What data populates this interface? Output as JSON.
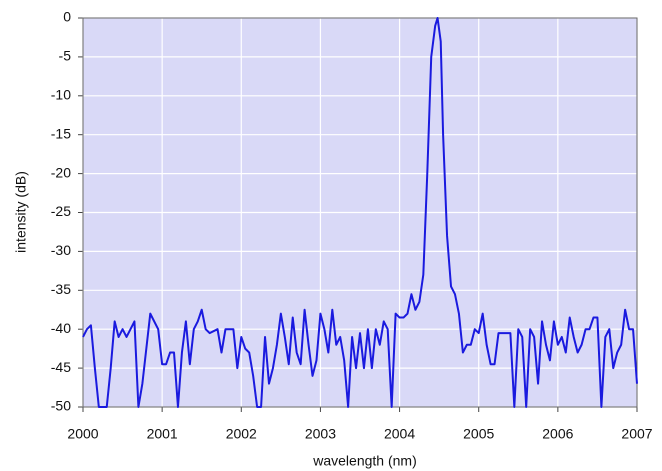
{
  "chart_data": {
    "type": "line",
    "xlabel": "wavelength (nm)",
    "ylabel": "intensity (dB)",
    "xlim": [
      2000,
      2007
    ],
    "xticks": [
      2000,
      2001,
      2002,
      2003,
      2004,
      2005,
      2006,
      2007
    ],
    "ylim": [
      -50,
      0
    ],
    "yticks": [
      0,
      -5,
      -10,
      -15,
      -20,
      -25,
      -30,
      -35,
      -40,
      -45,
      -50
    ],
    "grid": true,
    "color": "#1a1adf",
    "background": "#d9d9f7",
    "x": [
      2000.0,
      2000.05,
      2000.1,
      2000.15,
      2000.2,
      2000.25,
      2000.3,
      2000.35,
      2000.4,
      2000.45,
      2000.5,
      2000.55,
      2000.6,
      2000.65,
      2000.7,
      2000.75,
      2000.85,
      2000.9,
      2000.95,
      2001.0,
      2001.05,
      2001.1,
      2001.15,
      2001.2,
      2001.25,
      2001.3,
      2001.35,
      2001.4,
      2001.45,
      2001.5,
      2001.55,
      2001.6,
      2001.7,
      2001.75,
      2001.8,
      2001.85,
      2001.9,
      2001.95,
      2002.0,
      2002.05,
      2002.1,
      2002.15,
      2002.2,
      2002.25,
      2002.3,
      2002.35,
      2002.4,
      2002.45,
      2002.5,
      2002.55,
      2002.6,
      2002.65,
      2002.7,
      2002.75,
      2002.8,
      2002.85,
      2002.9,
      2002.95,
      2003.0,
      2003.05,
      2003.1,
      2003.15,
      2003.2,
      2003.25,
      2003.3,
      2003.35,
      2003.4,
      2003.45,
      2003.5,
      2003.55,
      2003.6,
      2003.65,
      2003.7,
      2003.75,
      2003.8,
      2003.85,
      2003.9,
      2003.95,
      2004.0,
      2004.05,
      2004.1,
      2004.15,
      2004.2,
      2004.25,
      2004.3,
      2004.35,
      2004.4,
      2004.45,
      2004.48,
      2004.52,
      2004.55,
      2004.6,
      2004.65,
      2004.7,
      2004.75,
      2004.8,
      2004.85,
      2004.9,
      2004.95,
      2005.0,
      2005.05,
      2005.1,
      2005.15,
      2005.2,
      2005.25,
      2005.3,
      2005.35,
      2005.4,
      2005.45,
      2005.5,
      2005.55,
      2005.6,
      2005.65,
      2005.7,
      2005.75,
      2005.8,
      2005.85,
      2005.9,
      2005.95,
      2006.0,
      2006.05,
      2006.1,
      2006.15,
      2006.2,
      2006.25,
      2006.3,
      2006.35,
      2006.4,
      2006.45,
      2006.5,
      2006.55,
      2006.6,
      2006.65,
      2006.7,
      2006.75,
      2006.8,
      2006.85,
      2006.9,
      2006.95,
      2007.0
    ],
    "values": [
      -41,
      -40,
      -39.5,
      -45,
      -50,
      -50,
      -50,
      -45,
      -39,
      -41,
      -40,
      -41,
      -40,
      -39,
      -50,
      -47,
      -38,
      -39,
      -40,
      -44.5,
      -44.5,
      -43,
      -43,
      -50,
      -43,
      -39,
      -44.5,
      -40,
      -39,
      -37.5,
      -40,
      -40.5,
      -40,
      -43,
      -40,
      -40,
      -40,
      -45,
      -41,
      -42.5,
      -43,
      -46,
      -50,
      -50,
      -41,
      -47,
      -45,
      -42,
      -38,
      -41,
      -44.5,
      -38.5,
      -43,
      -44.5,
      -37.5,
      -42,
      -46,
      -44,
      -38,
      -40,
      -43,
      -37.5,
      -42,
      -41,
      -44,
      -50,
      -41,
      -45,
      -40.5,
      -45,
      -40,
      -45,
      -40,
      -42,
      -39,
      -40,
      -50,
      -38,
      -38.5,
      -38.5,
      -38,
      -35.5,
      -37.5,
      -36.5,
      -33,
      -20,
      -5,
      -1,
      0,
      -3,
      -15,
      -28,
      -34.5,
      -35.5,
      -38,
      -43,
      -42,
      -42,
      -40,
      -40.5,
      -38,
      -42,
      -44.5,
      -44.5,
      -40.5,
      -40.5,
      -40.5,
      -40.5,
      -50,
      -40,
      -41,
      -50,
      -40,
      -41,
      -47,
      -39,
      -42,
      -44,
      -39,
      -42,
      -41,
      -43,
      -38.5,
      -41,
      -43,
      -42,
      -40,
      -40,
      -38.5,
      -38.5,
      -50,
      -41,
      -40,
      -45,
      -43,
      -42,
      -37.5,
      -40,
      -40,
      -47
    ]
  }
}
